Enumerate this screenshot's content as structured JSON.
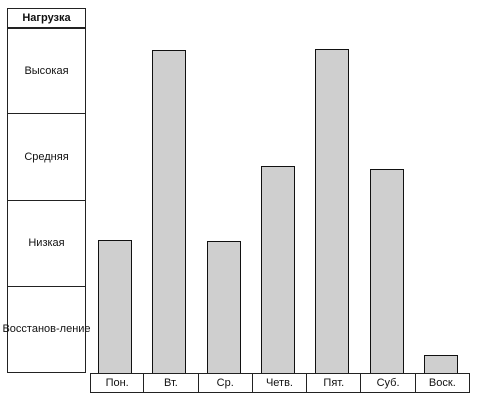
{
  "chart_data": {
    "type": "bar",
    "ylabel": "Нагрузка",
    "levels": [
      "Высокая",
      "Средняя",
      "Низкая",
      "Восстанов-ление"
    ],
    "categories": [
      "Пон.",
      "Вт.",
      "Ср.",
      "Четв.",
      "Пят.",
      "Суб.",
      "Воск."
    ],
    "values": [
      1.54,
      3.74,
      1.53,
      2.4,
      3.76,
      2.36,
      0.21
    ],
    "ylim": [
      0,
      4
    ],
    "bar_color": "#cfcfcf",
    "grid": false
  }
}
